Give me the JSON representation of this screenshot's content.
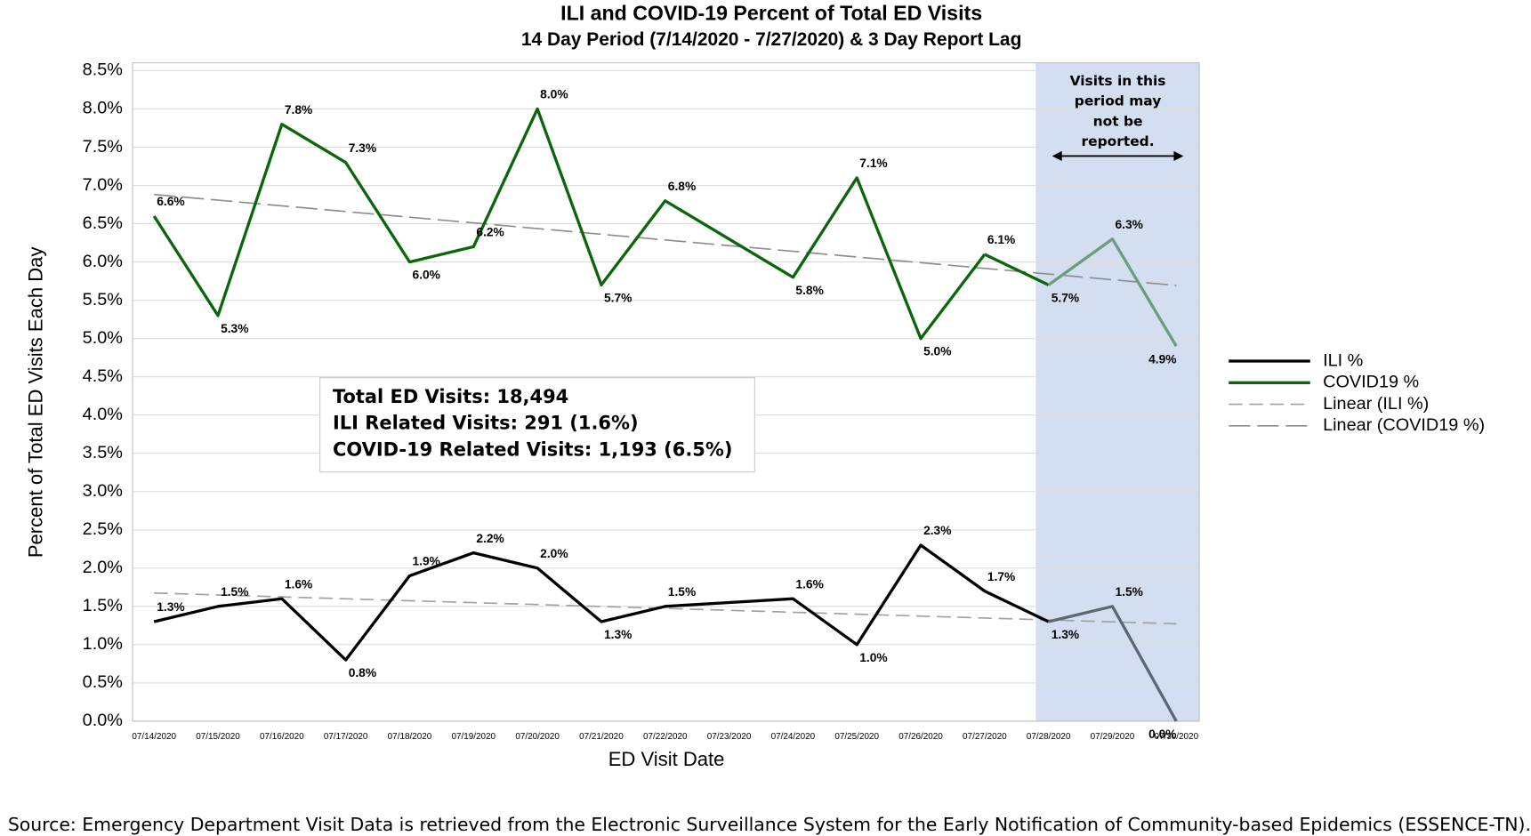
{
  "chart_data": {
    "type": "line",
    "title": "ILI and COVID-19 Percent of Total ED Visits",
    "subtitle": "14 Day Period (7/14/2020 - 7/27/2020) & 3 Day Report Lag",
    "xlabel": "ED Visit Date",
    "ylabel": "Percent of Total ED Visits Each Day",
    "x": [
      "07/14/2020",
      "07/15/2020",
      "07/16/2020",
      "07/17/2020",
      "07/18/2020",
      "07/19/2020",
      "07/20/2020",
      "07/21/2020",
      "07/22/2020",
      "07/23/2020",
      "07/24/2020",
      "07/25/2020",
      "07/26/2020",
      "07/27/2020",
      "07/28/2020",
      "07/29/2020",
      "07/30/2020"
    ],
    "series": [
      {
        "name": "ILI %",
        "color": "#000000",
        "lag_color": "#5f6673",
        "values": [
          1.3,
          1.5,
          1.6,
          0.8,
          1.9,
          2.2,
          2.0,
          1.3,
          1.5,
          1.55,
          1.6,
          1.0,
          2.3,
          1.7,
          1.3,
          1.5,
          0.0
        ],
        "value_labels": [
          "1.3%",
          "1.5%",
          "1.6%",
          "0.8%",
          "1.9%",
          "2.2%",
          "2.0%",
          "1.3%",
          "1.5%",
          null,
          "1.6%",
          "1.0%",
          "2.3%",
          "1.7%",
          "1.3%",
          "1.5%",
          "0.0%"
        ]
      },
      {
        "name": "COVID19 %",
        "color": "#0b650b",
        "lag_color": "#6a9e7c",
        "values": [
          6.6,
          5.3,
          7.8,
          7.3,
          6.0,
          6.2,
          8.0,
          5.7,
          6.8,
          6.3,
          5.8,
          7.1,
          5.0,
          6.1,
          5.7,
          6.3,
          4.9
        ],
        "value_labels": [
          "6.6%",
          "5.3%",
          "7.8%",
          "7.3%",
          "6.0%",
          "6.2%",
          "8.0%",
          "5.7%",
          "6.8%",
          null,
          "5.8%",
          "7.1%",
          "5.0%",
          "6.1%",
          "5.7%",
          "6.3%",
          "4.9%"
        ]
      }
    ],
    "trendlines": [
      {
        "name": "Linear (ILI %)",
        "series": "ILI %",
        "color": "#a0a0a0"
      },
      {
        "name": "Linear (COVID19 %)",
        "series": "COVID19 %",
        "color": "#8c8c8c"
      }
    ],
    "ylim": [
      0,
      8.5
    ],
    "yticks": [
      {
        "value": 0,
        "label": "0.0%"
      },
      {
        "value": 0.5,
        "label": "0.5%"
      },
      {
        "value": 1,
        "label": "1.0%"
      },
      {
        "value": 1.5,
        "label": "1.5%"
      },
      {
        "value": 2,
        "label": "2.0%"
      },
      {
        "value": 2.5,
        "label": "2.5%"
      },
      {
        "value": 3,
        "label": "3.0%"
      },
      {
        "value": 3.5,
        "label": "3.5%"
      },
      {
        "value": 4,
        "label": "4.0%"
      },
      {
        "value": 4.5,
        "label": "4.5%"
      },
      {
        "value": 5,
        "label": "5.0%"
      },
      {
        "value": 5.5,
        "label": "5.5%"
      },
      {
        "value": 6,
        "label": "6.0%"
      },
      {
        "value": 6.5,
        "label": "6.5%"
      },
      {
        "value": 7,
        "label": "7.0%"
      },
      {
        "value": 7.5,
        "label": "7.5%"
      },
      {
        "value": 8,
        "label": "8.0%"
      },
      {
        "value": 8.5,
        "label": "8.5%"
      }
    ],
    "grid": true,
    "legend": "right",
    "shade_color": "#d3def0",
    "lag_note": [
      "Visits in this",
      "period may",
      "not be",
      "reported."
    ],
    "info_box": [
      "Total ED Visits: 18,494",
      "ILI Related Visits: 291 (1.6%)",
      "COVID-19 Related Visits: 1,193 (6.5%)"
    ],
    "source": "Source: Emergency Department Visit Data is retrieved from the Electronic Surveillance System for the Early Notification of Community-based Epidemics (ESSENCE-TN)."
  }
}
